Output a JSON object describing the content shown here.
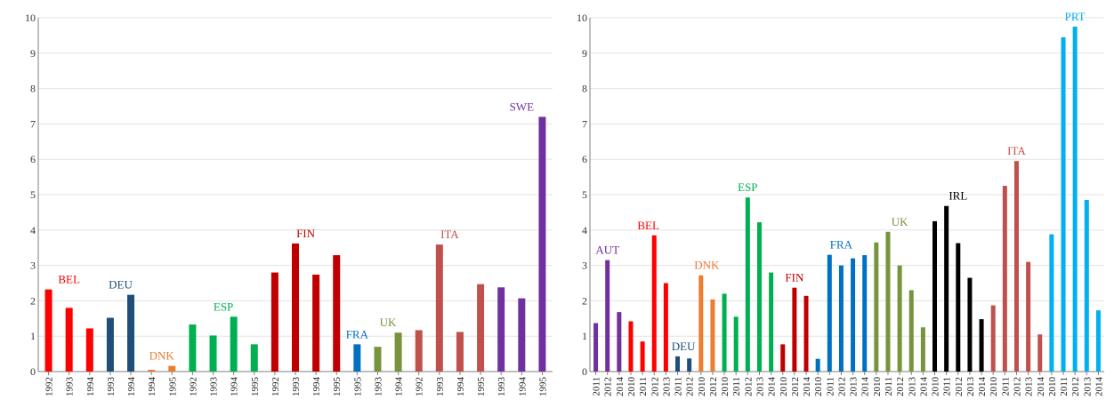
{
  "chart_data": [
    {
      "type": "bar",
      "ylim": [
        0,
        10
      ],
      "yticks": [
        0,
        1,
        2,
        3,
        4,
        5,
        6,
        7,
        8,
        9,
        10
      ],
      "grid": true,
      "groups": [
        {
          "name": "BEL",
          "color": "#ff0000",
          "label_color": "#ff0000",
          "bars": [
            {
              "year": "1992",
              "value": 2.32
            },
            {
              "year": "1993",
              "value": 1.8
            },
            {
              "year": "1994",
              "value": 1.22
            }
          ]
        },
        {
          "name": "DEU",
          "color": "#1f4e79",
          "label_color": "#1f4e79",
          "bars": [
            {
              "year": "1993",
              "value": 1.52
            },
            {
              "year": "1994",
              "value": 2.17
            }
          ]
        },
        {
          "name": "DNK",
          "color": "#ed7d31",
          "label_color": "#ed7d31",
          "bars": [
            {
              "year": "1994",
              "value": 0.05
            },
            {
              "year": "1995",
              "value": 0.16
            }
          ]
        },
        {
          "name": "ESP",
          "color": "#00b050",
          "label_color": "#00b050",
          "bars": [
            {
              "year": "1992",
              "value": 1.33
            },
            {
              "year": "1993",
              "value": 1.02
            },
            {
              "year": "1994",
              "value": 1.55
            },
            {
              "year": "1995",
              "value": 0.77
            }
          ]
        },
        {
          "name": "FIN",
          "color": "#c00000",
          "label_color": "#c00000",
          "bars": [
            {
              "year": "1992",
              "value": 2.8
            },
            {
              "year": "1993",
              "value": 3.62
            },
            {
              "year": "1994",
              "value": 2.74
            },
            {
              "year": "1995",
              "value": 3.29
            }
          ]
        },
        {
          "name": "FRA",
          "color": "#0070c0",
          "label_color": "#0070c0",
          "bars": [
            {
              "year": "1995",
              "value": 0.77
            }
          ]
        },
        {
          "name": "UK",
          "color": "#77933c",
          "label_color": "#77933c",
          "bars": [
            {
              "year": "1993",
              "value": 0.7
            },
            {
              "year": "1994",
              "value": 1.1
            }
          ]
        },
        {
          "name": "ITA",
          "color": "#c0504d",
          "label_color": "#c0504d",
          "bars": [
            {
              "year": "1992",
              "value": 1.17
            },
            {
              "year": "1993",
              "value": 3.59
            },
            {
              "year": "1994",
              "value": 1.12
            },
            {
              "year": "1995",
              "value": 2.47
            }
          ]
        },
        {
          "name": "SWE",
          "color": "#7030a0",
          "label_color": "#7030a0",
          "bars": [
            {
              "year": "1993",
              "value": 2.38
            },
            {
              "year": "1994",
              "value": 2.07
            },
            {
              "year": "1995",
              "value": 7.2
            }
          ]
        }
      ]
    },
    {
      "type": "bar",
      "ylim": [
        0,
        10
      ],
      "yticks": [
        0,
        1,
        2,
        3,
        4,
        5,
        6,
        7,
        8,
        9,
        10
      ],
      "grid": true,
      "groups": [
        {
          "name": "AUT",
          "color": "#7030a0",
          "label_color": "#7030a0",
          "bars": [
            {
              "year": "2011",
              "value": 1.37
            },
            {
              "year": "2012",
              "value": 3.15
            },
            {
              "year": "2014",
              "value": 1.68
            }
          ]
        },
        {
          "name": "BEL",
          "color": "#ff0000",
          "label_color": "#ff0000",
          "bars": [
            {
              "year": "2010",
              "value": 1.42
            },
            {
              "year": "2011",
              "value": 0.85
            },
            {
              "year": "2012",
              "value": 3.85
            },
            {
              "year": "2013",
              "value": 2.5
            }
          ]
        },
        {
          "name": "DEU",
          "color": "#1f4e79",
          "label_color": "#1f4e79",
          "bars": [
            {
              "year": "2011",
              "value": 0.43
            },
            {
              "year": "2012",
              "value": 0.37
            }
          ]
        },
        {
          "name": "DNK",
          "color": "#ed7d31",
          "label_color": "#ed7d31",
          "bars": [
            {
              "year": "2010",
              "value": 2.72
            },
            {
              "year": "2012",
              "value": 2.04
            }
          ]
        },
        {
          "name": "ESP",
          "color": "#00b050",
          "label_color": "#00b050",
          "bars": [
            {
              "year": "2010",
              "value": 2.2
            },
            {
              "year": "2011",
              "value": 1.55
            },
            {
              "year": "2012",
              "value": 4.92
            },
            {
              "year": "2013",
              "value": 4.22
            },
            {
              "year": "2014",
              "value": 2.8
            }
          ]
        },
        {
          "name": "FIN",
          "color": "#c00000",
          "label_color": "#c00000",
          "bars": [
            {
              "year": "2010",
              "value": 0.77
            },
            {
              "year": "2012",
              "value": 2.37
            },
            {
              "year": "2014",
              "value": 2.14
            }
          ]
        },
        {
          "name": "FRA",
          "color": "#0070c0",
          "label_color": "#0070c0",
          "bars": [
            {
              "year": "2010",
              "value": 0.36
            },
            {
              "year": "2011",
              "value": 3.3
            },
            {
              "year": "2012",
              "value": 3.0
            },
            {
              "year": "2013",
              "value": 3.2
            },
            {
              "year": "2014",
              "value": 3.29
            }
          ]
        },
        {
          "name": "UK",
          "color": "#77933c",
          "label_color": "#77933c",
          "bars": [
            {
              "year": "2010",
              "value": 3.65
            },
            {
              "year": "2011",
              "value": 3.95
            },
            {
              "year": "2012",
              "value": 3.0
            },
            {
              "year": "2013",
              "value": 2.3
            },
            {
              "year": "2014",
              "value": 1.25
            }
          ]
        },
        {
          "name": "IRL",
          "color": "#000000",
          "label_color": "#000000",
          "bars": [
            {
              "year": "2010",
              "value": 4.25
            },
            {
              "year": "2011",
              "value": 4.68
            },
            {
              "year": "2012",
              "value": 3.63
            },
            {
              "year": "2013",
              "value": 2.65
            },
            {
              "year": "2014",
              "value": 1.48
            }
          ]
        },
        {
          "name": "ITA",
          "color": "#c0504d",
          "label_color": "#c0504d",
          "bars": [
            {
              "year": "2010",
              "value": 1.87
            },
            {
              "year": "2011",
              "value": 5.25
            },
            {
              "year": "2012",
              "value": 5.95
            },
            {
              "year": "2013",
              "value": 3.1
            },
            {
              "year": "2014",
              "value": 1.05
            }
          ]
        },
        {
          "name": "PRT",
          "color": "#00b0f0",
          "label_color": "#00b0f0",
          "bars": [
            {
              "year": "2010",
              "value": 3.88
            },
            {
              "year": "2011",
              "value": 9.45
            },
            {
              "year": "2012",
              "value": 9.75
            },
            {
              "year": "2013",
              "value": 4.85
            },
            {
              "year": "2014",
              "value": 1.73
            }
          ]
        }
      ]
    }
  ]
}
